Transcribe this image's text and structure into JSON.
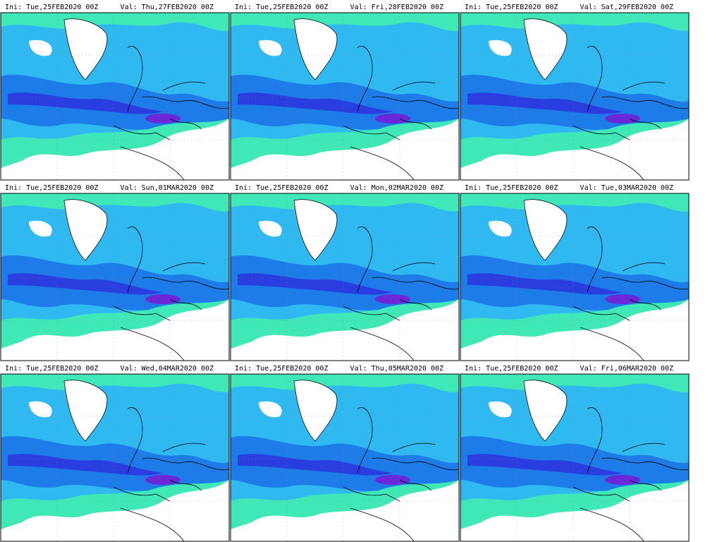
{
  "panels": [
    {
      "ini": "Ini: Tue,25FEB2020 00Z",
      "val": "Val: Thu,27FEB2020 00Z"
    },
    {
      "ini": "Ini: Tue,25FEB2020 00Z",
      "val": "Val: Fri,28FEB2020 00Z"
    },
    {
      "ini": "Ini: Tue,25FEB2020 00Z",
      "val": "Val: Sat,29FEB2020 00Z"
    },
    {
      "ini": "Ini: Tue,25FEB2020 00Z",
      "val": "Val: Sun,01MAR2020 00Z"
    },
    {
      "ini": "Ini: Tue,25FEB2020 00Z",
      "val": "Val: Mon,02MAR2020 00Z"
    },
    {
      "ini": "Ini: Tue,25FEB2020 00Z",
      "val": "Val: Tue,03MAR2020 00Z"
    },
    {
      "ini": "Ini: Tue,25FEB2020 00Z",
      "val": "Val: Wed,04MAR2020 00Z"
    },
    {
      "ini": "Ini: Tue,25FEB2020 00Z",
      "val": "Val: Thu,05MAR2020 00Z"
    },
    {
      "ini": "Ini: Tue,25FEB2020 00Z",
      "val": "Val: Fri,06MAR2020 00Z"
    }
  ]
}
